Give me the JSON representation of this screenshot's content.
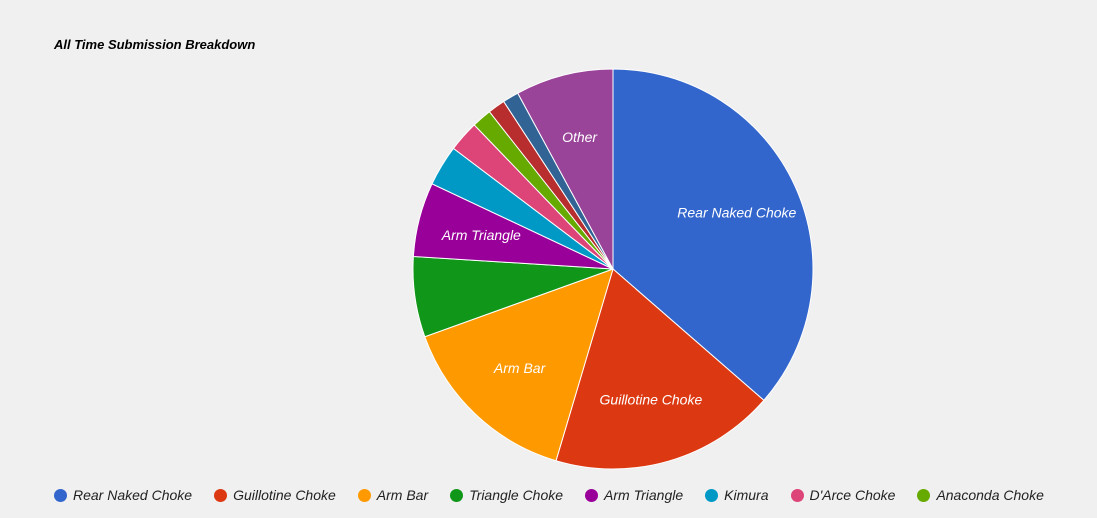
{
  "chart_data": {
    "type": "pie",
    "title": "All Time Submission Breakdown",
    "slices": [
      {
        "label": "Rear Naked Choke",
        "value": 36.4,
        "color": "#3366cc",
        "show_label": true
      },
      {
        "label": "Guillotine Choke",
        "value": 18.2,
        "color": "#dc3912",
        "show_label": true
      },
      {
        "label": "Arm Bar",
        "value": 14.9,
        "color": "#ff9900",
        "show_label": true
      },
      {
        "label": "Triangle Choke",
        "value": 6.5,
        "color": "#109618",
        "show_label": false
      },
      {
        "label": "Arm Triangle",
        "value": 6.0,
        "color": "#990099",
        "show_label": true
      },
      {
        "label": "Kimura",
        "value": 3.3,
        "color": "#0099c6",
        "show_label": false
      },
      {
        "label": "D'Arce Choke",
        "value": 2.5,
        "color": "#dd4477",
        "show_label": false
      },
      {
        "label": "Anaconda Choke",
        "value": 1.6,
        "color": "#66aa00",
        "show_label": false
      },
      {
        "label": "",
        "value": 1.4,
        "color": "#b82e2e",
        "show_label": false
      },
      {
        "label": "",
        "value": 1.3,
        "color": "#316395",
        "show_label": false
      },
      {
        "label": "Other",
        "value": 7.9,
        "color": "#994499",
        "show_label": true
      }
    ],
    "legend_position": "bottom"
  }
}
